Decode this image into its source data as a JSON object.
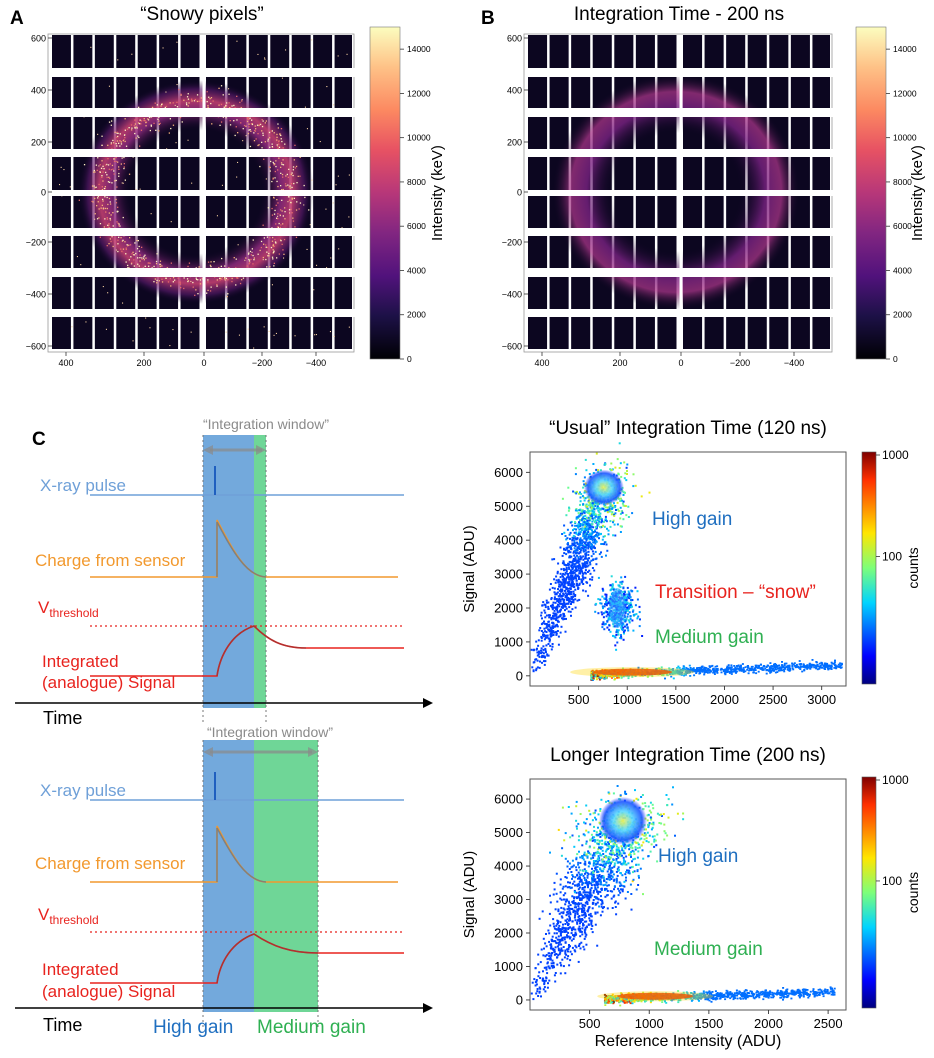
{
  "colors": {
    "xray": "#6fa0d8",
    "charge": "#f2992e",
    "integrated": "#e8231e",
    "threshold": "#e8231e",
    "high_gain_fill": "#5b9ad6",
    "medium_gain_fill": "#5fd18c",
    "window": "#8a8a8a",
    "high_gain_text": "#1f6fc0",
    "medium_gain_text": "#2fb052",
    "snow_text": "#e8231e"
  },
  "panelA": {
    "letter": "A",
    "title": "“Snowy pixels”",
    "colorbar_label": "Intensity (keV)",
    "colorbar_ticks": [
      "14000",
      "12000",
      "10000",
      "8000",
      "6000",
      "4000",
      "2000",
      "0"
    ],
    "y_ticks": [
      "600",
      "400",
      "200",
      "0",
      "−200",
      "−400",
      "−600"
    ],
    "x_ticks": [
      "400",
      "200",
      "0",
      "−200",
      "−400"
    ]
  },
  "panelB": {
    "letter": "B",
    "title": "Integration Time - 200 ns",
    "colorbar_label": "Intensity (keV)",
    "colorbar_ticks": [
      "14000",
      "12000",
      "10000",
      "8000",
      "6000",
      "4000",
      "2000",
      "0"
    ],
    "y_ticks": [
      "600",
      "400",
      "200",
      "0",
      "−200",
      "−400",
      "−600"
    ],
    "x_ticks": [
      "400",
      "200",
      "0",
      "−200",
      "−400"
    ]
  },
  "panelC": {
    "letter": "C",
    "top": {
      "window_label": "“Integration window”",
      "xray_label": "X-ray pulse",
      "charge_label": "Charge from sensor",
      "v_label": "V",
      "v_sub": "threshold",
      "integrated_line1": "Integrated",
      "integrated_line2": "(analogue) Signal",
      "time_label": "Time"
    },
    "bottom": {
      "window_label": "“Integration window”",
      "xray_label": "X-ray pulse",
      "charge_label": "Charge from sensor",
      "v_label": "V",
      "v_sub": "threshold",
      "integrated_line1": "Integrated",
      "integrated_line2": "(analogue) Signal",
      "time_label": "Time",
      "high_gain_label": "High gain",
      "medium_gain_label": "Medium gain"
    }
  },
  "chart_data": [
    {
      "type": "scatter",
      "title": "“Usual” Integration Time (120 ns)",
      "xlabel": "",
      "ylabel": "Signal (ADU)",
      "xlim": [
        0,
        3250
      ],
      "ylim": [
        -300,
        6600
      ],
      "x_ticks": [
        500,
        1000,
        1500,
        2000,
        2500,
        3000
      ],
      "y_ticks": [
        0,
        1000,
        2000,
        3000,
        4000,
        5000,
        6000
      ],
      "annotations": [
        {
          "text": "High gain",
          "color": "#1f6fc0"
        },
        {
          "text": "Transition – “snow”",
          "color": "#e8231e"
        },
        {
          "text": "Medium gain",
          "color": "#2fb052"
        }
      ],
      "colorbar": {
        "label": "counts",
        "ticks": [
          "1000",
          "100"
        ]
      },
      "clusters": [
        {
          "name": "High gain",
          "x_range": [
            0,
            1000
          ],
          "y_range": [
            0,
            6200
          ]
        },
        {
          "name": "Transition",
          "x_center": 900,
          "y_center": 2000
        },
        {
          "name": "Medium gain",
          "x_range": [
            600,
            3200
          ],
          "y_range": [
            0,
            450
          ]
        }
      ]
    },
    {
      "type": "scatter",
      "title": "Longer Integration Time (200 ns)",
      "xlabel": "Reference Intensity (ADU)",
      "ylabel": "Signal (ADU)",
      "xlim": [
        0,
        2650
      ],
      "ylim": [
        -300,
        6600
      ],
      "x_ticks": [
        500,
        1000,
        1500,
        2000,
        2500
      ],
      "y_ticks": [
        0,
        1000,
        2000,
        3000,
        4000,
        5000,
        6000
      ],
      "annotations": [
        {
          "text": "High gain",
          "color": "#1f6fc0"
        },
        {
          "text": "Medium gain",
          "color": "#2fb052"
        }
      ],
      "colorbar": {
        "label": "counts",
        "ticks": [
          "1000",
          "100"
        ]
      },
      "clusters": [
        {
          "name": "High gain",
          "x_range": [
            0,
            1000
          ],
          "y_range": [
            0,
            6200
          ]
        },
        {
          "name": "Medium gain",
          "x_range": [
            600,
            2550
          ],
          "y_range": [
            0,
            400
          ]
        }
      ]
    }
  ]
}
